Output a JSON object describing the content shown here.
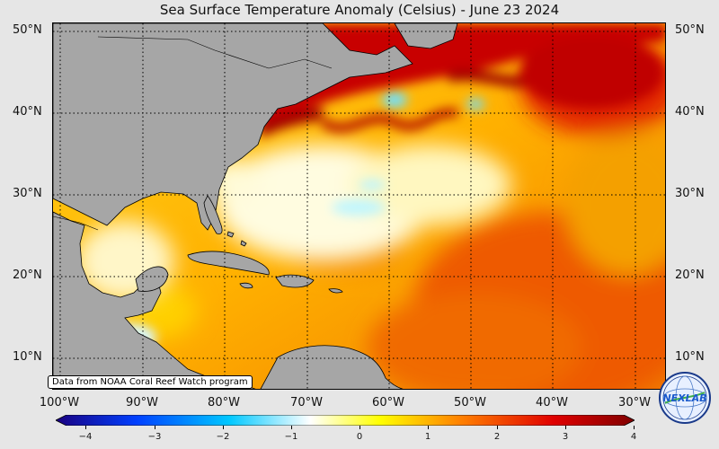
{
  "title": "Sea Surface Temperature Anomaly (Celsius) - June 23 2024",
  "source_note": "Data from NOAA Coral Reef Watch program",
  "lat_labels": [
    "50°N",
    "40°N",
    "30°N",
    "20°N",
    "10°N"
  ],
  "lon_labels": [
    "100°W",
    "90°W",
    "80°W",
    "70°W",
    "60°W",
    "50°W",
    "40°W",
    "30°W"
  ],
  "colorbar": {
    "ticks": [
      "−4",
      "−3",
      "−2",
      "−1",
      "0",
      "1",
      "2",
      "3",
      "4"
    ],
    "range": [
      -4,
      4
    ],
    "colors": [
      "#1a0080",
      "#0040ff",
      "#00c8ff",
      "#ffffff",
      "#ffff00",
      "#ff8000",
      "#e00000",
      "#800000"
    ]
  },
  "map_extent": {
    "lon_min": -101,
    "lon_max": -26,
    "lat_min": 6,
    "lat_max": 51
  },
  "logo": {
    "text": "NEXLAB",
    "icon": "nexlab-globe-logo"
  },
  "colors": {
    "land": "#a6a6a6",
    "background": "#e6e6e6"
  }
}
